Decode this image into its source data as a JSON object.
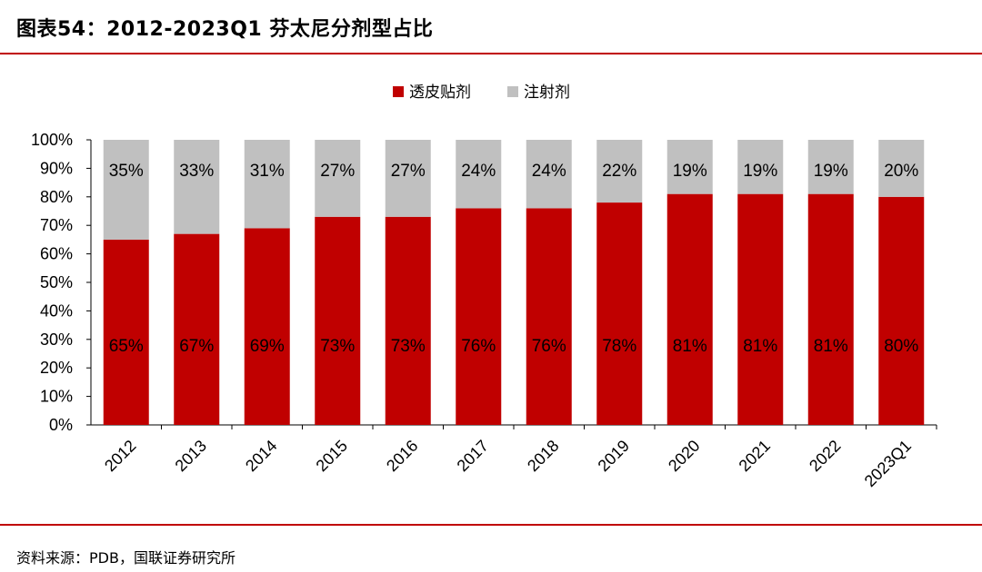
{
  "title": "图表54：2012-2023Q1 芬太尼分剂型占比",
  "source": "资料来源：PDB，国联证券研究所",
  "colors": {
    "accent": "#c00000",
    "series1": "#c00000",
    "series2": "#c0c0c0"
  },
  "chart_data": {
    "type": "bar",
    "stacked": true,
    "categories": [
      "2012",
      "2013",
      "2014",
      "2015",
      "2016",
      "2017",
      "2018",
      "2019",
      "2020",
      "2021",
      "2022",
      "2023Q1"
    ],
    "series": [
      {
        "name": "透皮贴剂",
        "values": [
          65,
          67,
          69,
          73,
          73,
          76,
          76,
          78,
          81,
          81,
          81,
          80
        ],
        "labels": [
          "65%",
          "67%",
          "69%",
          "73%",
          "73%",
          "76%",
          "76%",
          "78%",
          "81%",
          "81%",
          "81%",
          "80%"
        ]
      },
      {
        "name": "注射剂",
        "values": [
          35,
          33,
          31,
          27,
          27,
          24,
          24,
          22,
          19,
          19,
          19,
          20
        ],
        "labels": [
          "35%",
          "33%",
          "31%",
          "27%",
          "27%",
          "24%",
          "24%",
          "22%",
          "19%",
          "19%",
          "19%",
          "20%"
        ]
      }
    ],
    "yticks": [
      "0%",
      "10%",
      "20%",
      "30%",
      "40%",
      "50%",
      "60%",
      "70%",
      "80%",
      "90%",
      "100%"
    ],
    "ylim": [
      0,
      100
    ],
    "legend": "top-center"
  }
}
